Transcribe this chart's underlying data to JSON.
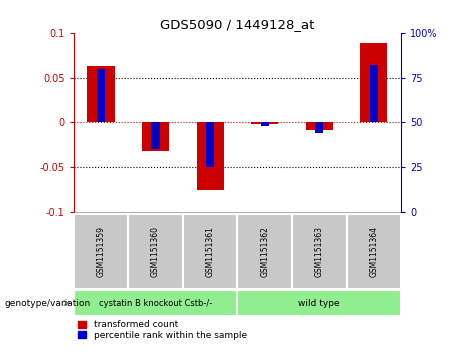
{
  "title": "GDS5090 / 1449128_at",
  "samples": [
    "GSM1151359",
    "GSM1151360",
    "GSM1151361",
    "GSM1151362",
    "GSM1151363",
    "GSM1151364"
  ],
  "red_values": [
    0.063,
    -0.032,
    -0.075,
    -0.002,
    -0.008,
    0.088
  ],
  "blue_values_pct": [
    80,
    35,
    25,
    48,
    44,
    82
  ],
  "ylim_left": [
    -0.1,
    0.1
  ],
  "ylim_right": [
    0,
    100
  ],
  "yticks_left": [
    -0.1,
    -0.05,
    0,
    0.05,
    0.1
  ],
  "yticks_right": [
    0,
    25,
    50,
    75,
    100
  ],
  "ytick_labels_left": [
    "-0.1",
    "-0.05",
    "0",
    "0.05",
    "0.1"
  ],
  "ytick_labels_right": [
    "0",
    "25",
    "50",
    "75",
    "100%"
  ],
  "group1_label": "cystatin B knockout Cstb-/-",
  "group2_label": "wild type",
  "group1_indices": [
    0,
    1,
    2
  ],
  "group2_indices": [
    3,
    4,
    5
  ],
  "group1_color": "#90EE90",
  "group2_color": "#90EE90",
  "genotype_label": "genotype/variation",
  "legend_red": "transformed count",
  "legend_blue": "percentile rank within the sample",
  "red_bar_width": 0.5,
  "blue_bar_width": 0.15,
  "red_color": "#CC0000",
  "blue_color": "#0000CC",
  "zero_line_color": "#CC0000",
  "bg_color": "#FFFFFF",
  "tick_box_color": "#C8C8C8"
}
